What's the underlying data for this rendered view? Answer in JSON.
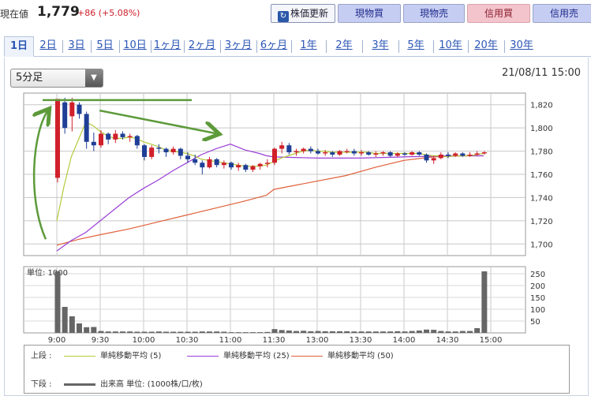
{
  "header": {
    "price_label": "現在値",
    "price": "1,779",
    "change": "+86 (+5.08%)",
    "buttons": {
      "update": "株価更新",
      "cash_buy": "現物買",
      "cash_sell": "現物売",
      "margin_buy": "信用買",
      "margin_sell": "信用売"
    }
  },
  "tabs": [
    "1日",
    "2日",
    "3日",
    "5日",
    "10日",
    "1ヶ月",
    "2ヶ月",
    "3ヶ月",
    "6ヶ月",
    "1年",
    "2年",
    "3年",
    "5年",
    "10年",
    "20年",
    "30年"
  ],
  "active_tab": 0,
  "interval": {
    "selected": "5分足"
  },
  "timestamp": "21/08/11 15:00",
  "colors": {
    "up": "#d0202a",
    "down": "#1f3f96",
    "ma5": "#b4c93a",
    "ma25": "#9a3fd6",
    "ma50": "#e0603a",
    "volume": "#666666",
    "annotation": "#5d9a3a"
  },
  "chart_data": {
    "type": "candlestick",
    "interval_minutes": 5,
    "price_axis": {
      "min": 1690,
      "max": 1830,
      "ticks": [
        "1,700",
        "1,720",
        "1,740",
        "1,760",
        "1,780",
        "1,800",
        "1,820"
      ]
    },
    "time_ticks": [
      "9:00",
      "9:30",
      "10:00",
      "10:30",
      "11:00",
      "11:30",
      "13:00",
      "13:30",
      "14:00",
      "14:30",
      "15:00"
    ],
    "sessions": [
      {
        "start": "9:00",
        "end": "11:30"
      },
      {
        "start": "12:30",
        "end": "15:00"
      }
    ],
    "candles": [
      {
        "t": "9:00",
        "o": 1757,
        "h": 1825,
        "l": 1753,
        "c": 1825
      },
      {
        "t": "9:05",
        "o": 1822,
        "h": 1826,
        "l": 1795,
        "c": 1800
      },
      {
        "t": "9:10",
        "o": 1810,
        "h": 1826,
        "l": 1797,
        "c": 1822
      },
      {
        "t": "9:15",
        "o": 1820,
        "h": 1822,
        "l": 1808,
        "c": 1812
      },
      {
        "t": "9:20",
        "o": 1812,
        "h": 1814,
        "l": 1782,
        "c": 1788
      },
      {
        "t": "9:25",
        "o": 1788,
        "h": 1796,
        "l": 1780,
        "c": 1785
      },
      {
        "t": "9:30",
        "o": 1785,
        "h": 1798,
        "l": 1783,
        "c": 1795
      },
      {
        "t": "9:35",
        "o": 1795,
        "h": 1796,
        "l": 1786,
        "c": 1790
      },
      {
        "t": "9:40",
        "o": 1790,
        "h": 1798,
        "l": 1787,
        "c": 1795
      },
      {
        "t": "9:45",
        "o": 1795,
        "h": 1797,
        "l": 1790,
        "c": 1792
      },
      {
        "t": "9:50",
        "o": 1792,
        "h": 1795,
        "l": 1788,
        "c": 1793
      },
      {
        "t": "9:55",
        "o": 1793,
        "h": 1794,
        "l": 1782,
        "c": 1785
      },
      {
        "t": "10:00",
        "o": 1785,
        "h": 1786,
        "l": 1772,
        "c": 1775
      },
      {
        "t": "10:05",
        "o": 1775,
        "h": 1785,
        "l": 1773,
        "c": 1783
      },
      {
        "t": "10:10",
        "o": 1783,
        "h": 1786,
        "l": 1778,
        "c": 1782
      },
      {
        "t": "10:15",
        "o": 1782,
        "h": 1783,
        "l": 1775,
        "c": 1779
      },
      {
        "t": "10:20",
        "o": 1779,
        "h": 1784,
        "l": 1777,
        "c": 1782
      },
      {
        "t": "10:25",
        "o": 1782,
        "h": 1783,
        "l": 1773,
        "c": 1776
      },
      {
        "t": "10:30",
        "o": 1776,
        "h": 1779,
        "l": 1770,
        "c": 1773
      },
      {
        "t": "10:35",
        "o": 1773,
        "h": 1777,
        "l": 1768,
        "c": 1770
      },
      {
        "t": "10:40",
        "o": 1770,
        "h": 1772,
        "l": 1760,
        "c": 1766
      },
      {
        "t": "10:45",
        "o": 1766,
        "h": 1775,
        "l": 1765,
        "c": 1773
      },
      {
        "t": "10:50",
        "o": 1773,
        "h": 1774,
        "l": 1766,
        "c": 1768
      },
      {
        "t": "10:55",
        "o": 1768,
        "h": 1772,
        "l": 1765,
        "c": 1770
      },
      {
        "t": "11:00",
        "o": 1770,
        "h": 1771,
        "l": 1764,
        "c": 1766
      },
      {
        "t": "11:05",
        "o": 1766,
        "h": 1770,
        "l": 1763,
        "c": 1768
      },
      {
        "t": "11:10",
        "o": 1768,
        "h": 1769,
        "l": 1762,
        "c": 1764
      },
      {
        "t": "11:15",
        "o": 1764,
        "h": 1768,
        "l": 1762,
        "c": 1767
      },
      {
        "t": "11:20",
        "o": 1767,
        "h": 1770,
        "l": 1764,
        "c": 1769
      },
      {
        "t": "11:25",
        "o": 1769,
        "h": 1773,
        "l": 1766,
        "c": 1770
      },
      {
        "t": "12:30",
        "o": 1770,
        "h": 1783,
        "l": 1768,
        "c": 1782
      },
      {
        "t": "12:35",
        "o": 1782,
        "h": 1788,
        "l": 1778,
        "c": 1785
      },
      {
        "t": "12:40",
        "o": 1785,
        "h": 1787,
        "l": 1777,
        "c": 1779
      },
      {
        "t": "12:45",
        "o": 1779,
        "h": 1782,
        "l": 1776,
        "c": 1780
      },
      {
        "t": "12:50",
        "o": 1780,
        "h": 1783,
        "l": 1778,
        "c": 1782
      },
      {
        "t": "12:55",
        "o": 1782,
        "h": 1784,
        "l": 1778,
        "c": 1780
      },
      {
        "t": "13:00",
        "o": 1780,
        "h": 1782,
        "l": 1777,
        "c": 1778
      },
      {
        "t": "13:05",
        "o": 1778,
        "h": 1781,
        "l": 1776,
        "c": 1779
      },
      {
        "t": "13:10",
        "o": 1779,
        "h": 1780,
        "l": 1775,
        "c": 1777
      },
      {
        "t": "13:15",
        "o": 1777,
        "h": 1781,
        "l": 1776,
        "c": 1780
      },
      {
        "t": "13:20",
        "o": 1780,
        "h": 1782,
        "l": 1778,
        "c": 1780
      },
      {
        "t": "13:25",
        "o": 1780,
        "h": 1782,
        "l": 1776,
        "c": 1778
      },
      {
        "t": "13:30",
        "o": 1778,
        "h": 1781,
        "l": 1776,
        "c": 1779
      },
      {
        "t": "13:35",
        "o": 1779,
        "h": 1780,
        "l": 1776,
        "c": 1777
      },
      {
        "t": "13:40",
        "o": 1777,
        "h": 1780,
        "l": 1775,
        "c": 1778
      },
      {
        "t": "13:45",
        "o": 1778,
        "h": 1780,
        "l": 1776,
        "c": 1779
      },
      {
        "t": "13:50",
        "o": 1779,
        "h": 1780,
        "l": 1775,
        "c": 1776
      },
      {
        "t": "13:55",
        "o": 1776,
        "h": 1779,
        "l": 1775,
        "c": 1778
      },
      {
        "t": "14:00",
        "o": 1778,
        "h": 1779,
        "l": 1776,
        "c": 1777
      },
      {
        "t": "14:05",
        "o": 1777,
        "h": 1780,
        "l": 1776,
        "c": 1779
      },
      {
        "t": "14:10",
        "o": 1779,
        "h": 1780,
        "l": 1776,
        "c": 1777
      },
      {
        "t": "14:15",
        "o": 1777,
        "h": 1778,
        "l": 1770,
        "c": 1772
      },
      {
        "t": "14:20",
        "o": 1772,
        "h": 1776,
        "l": 1769,
        "c": 1774
      },
      {
        "t": "14:25",
        "o": 1774,
        "h": 1779,
        "l": 1773,
        "c": 1777
      },
      {
        "t": "14:30",
        "o": 1777,
        "h": 1779,
        "l": 1774,
        "c": 1776
      },
      {
        "t": "14:35",
        "o": 1776,
        "h": 1779,
        "l": 1775,
        "c": 1778
      },
      {
        "t": "14:40",
        "o": 1778,
        "h": 1779,
        "l": 1775,
        "c": 1776
      },
      {
        "t": "14:45",
        "o": 1776,
        "h": 1779,
        "l": 1775,
        "c": 1777
      },
      {
        "t": "14:50",
        "o": 1777,
        "h": 1780,
        "l": 1776,
        "c": 1778
      },
      {
        "t": "14:55",
        "o": 1778,
        "h": 1780,
        "l": 1777,
        "c": 1779
      }
    ],
    "ma5": [
      [
        "9:00",
        1720
      ],
      [
        "9:05",
        1750
      ],
      [
        "9:10",
        1775
      ],
      [
        "9:15",
        1790
      ],
      [
        "9:20",
        1805
      ],
      [
        "9:25",
        1802
      ],
      [
        "9:30",
        1797
      ],
      [
        "9:35",
        1793
      ],
      [
        "9:40",
        1791
      ],
      [
        "9:45",
        1791
      ],
      [
        "9:50",
        1792
      ],
      [
        "9:55",
        1791
      ],
      [
        "10:00",
        1788
      ],
      [
        "10:05",
        1786
      ],
      [
        "10:10",
        1784
      ],
      [
        "10:15",
        1781
      ],
      [
        "10:20",
        1780
      ],
      [
        "10:25",
        1779
      ],
      [
        "10:30",
        1778
      ],
      [
        "10:35",
        1776
      ],
      [
        "10:40",
        1773
      ],
      [
        "10:45",
        1772
      ],
      [
        "10:50",
        1771
      ],
      [
        "10:55",
        1770
      ],
      [
        "11:00",
        1769
      ],
      [
        "11:05",
        1768
      ],
      [
        "11:10",
        1767
      ],
      [
        "11:15",
        1767
      ],
      [
        "11:20",
        1767
      ],
      [
        "11:25",
        1768
      ],
      [
        "12:30",
        1771
      ],
      [
        "12:35",
        1774
      ],
      [
        "12:40",
        1776
      ],
      [
        "12:45",
        1778
      ],
      [
        "12:50",
        1780
      ],
      [
        "12:55",
        1781
      ],
      [
        "13:00",
        1780
      ],
      [
        "13:05",
        1780
      ],
      [
        "13:10",
        1779
      ],
      [
        "13:15",
        1779
      ],
      [
        "13:20",
        1779
      ],
      [
        "13:25",
        1779
      ],
      [
        "13:30",
        1779
      ],
      [
        "13:35",
        1779
      ],
      [
        "13:40",
        1778
      ],
      [
        "13:45",
        1778
      ],
      [
        "13:50",
        1778
      ],
      [
        "13:55",
        1778
      ],
      [
        "14:00",
        1778
      ],
      [
        "14:05",
        1778
      ],
      [
        "14:10",
        1778
      ],
      [
        "14:15",
        1777
      ],
      [
        "14:20",
        1776
      ],
      [
        "14:25",
        1776
      ],
      [
        "14:30",
        1775
      ],
      [
        "14:35",
        1776
      ],
      [
        "14:40",
        1776
      ],
      [
        "14:45",
        1776
      ],
      [
        "14:50",
        1777
      ],
      [
        "14:55",
        1778
      ]
    ],
    "ma25": [
      [
        "9:00",
        1694
      ],
      [
        "9:10",
        1703
      ],
      [
        "9:20",
        1710
      ],
      [
        "9:30",
        1720
      ],
      [
        "9:40",
        1730
      ],
      [
        "9:50",
        1740
      ],
      [
        "10:00",
        1748
      ],
      [
        "10:10",
        1755
      ],
      [
        "10:20",
        1763
      ],
      [
        "10:30",
        1770
      ],
      [
        "10:40",
        1777
      ],
      [
        "10:50",
        1782
      ],
      [
        "11:00",
        1786
      ],
      [
        "11:10",
        1781
      ],
      [
        "11:20",
        1778
      ],
      [
        "11:25",
        1776
      ],
      [
        "12:30",
        1775
      ],
      [
        "13:00",
        1774
      ],
      [
        "13:30",
        1774
      ],
      [
        "14:00",
        1775
      ],
      [
        "14:30",
        1776
      ],
      [
        "14:55",
        1776
      ]
    ],
    "ma50": [
      [
        "9:00",
        1699
      ],
      [
        "9:15",
        1704
      ],
      [
        "9:30",
        1708
      ],
      [
        "9:50",
        1713
      ],
      [
        "10:10",
        1719
      ],
      [
        "10:30",
        1725
      ],
      [
        "10:50",
        1731
      ],
      [
        "11:10",
        1737
      ],
      [
        "11:25",
        1742
      ],
      [
        "12:30",
        1747
      ],
      [
        "12:55",
        1753
      ],
      [
        "13:20",
        1759
      ],
      [
        "13:40",
        1766
      ],
      [
        "14:00",
        1772
      ],
      [
        "14:20",
        1775
      ],
      [
        "14:40",
        1776
      ],
      [
        "14:55",
        1776
      ]
    ],
    "volume": {
      "unit_label": "単位: 1000",
      "axis_max": 280,
      "ticks": [
        "50",
        "100",
        "150",
        "200",
        "250"
      ],
      "values": [
        260,
        110,
        70,
        40,
        24,
        25,
        8,
        6,
        6,
        6,
        6,
        5,
        5,
        5,
        6,
        5,
        5,
        5,
        5,
        5,
        6,
        6,
        6,
        5,
        3,
        3,
        3,
        3,
        3,
        4,
        16,
        12,
        10,
        8,
        9,
        7,
        8,
        7,
        7,
        7,
        7,
        6,
        6,
        6,
        6,
        6,
        6,
        7,
        6,
        8,
        10,
        14,
        13,
        8,
        6,
        6,
        8,
        8,
        20,
        260
      ]
    },
    "annotations": [
      {
        "kind": "line",
        "from": [
          "9:00",
          1824
        ],
        "to": [
          "10:30",
          1824
        ]
      },
      {
        "kind": "arrow",
        "from": [
          "9:35",
          1815
        ],
        "to": [
          "10:50",
          1795
        ]
      },
      {
        "kind": "curved-arrow",
        "from": [
          "9:00",
          1700
        ],
        "to": [
          "9:05",
          1818
        ]
      }
    ]
  },
  "legend": {
    "upper_label": "上段 :",
    "lower_label": "下段 :",
    "ma5": "単純移動平均 (5)",
    "ma25": "単純移動平均 (25)",
    "ma50": "単純移動平均 (50)",
    "volume": "出来高 単位: (1000株/口/枚)"
  }
}
